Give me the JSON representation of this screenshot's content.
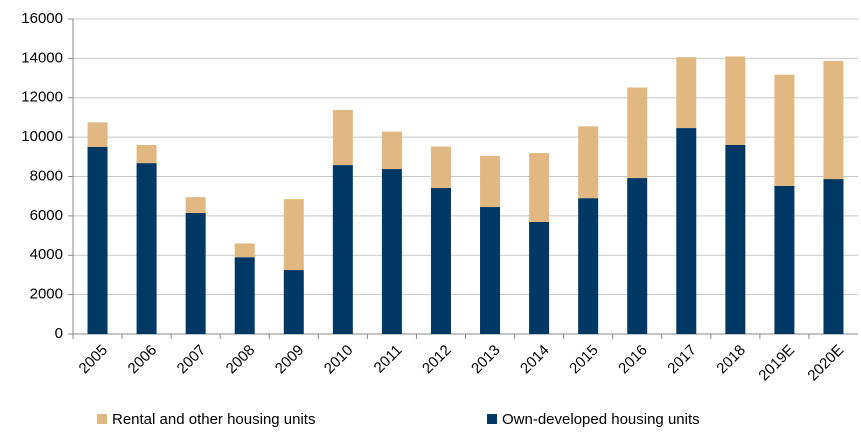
{
  "chart_data": {
    "type": "bar",
    "stacked": true,
    "categories": [
      "2005",
      "2006",
      "2007",
      "2008",
      "2009",
      "2010",
      "2011",
      "2012",
      "2013",
      "2014",
      "2015",
      "2016",
      "2017",
      "2018",
      "2019E",
      "2020E"
    ],
    "series": [
      {
        "name": "Rental and other housing units",
        "color": "#e1b882",
        "values": [
          1250,
          920,
          800,
          700,
          3600,
          2800,
          1900,
          2100,
          2600,
          3500,
          3650,
          4600,
          3600,
          4500,
          5650,
          6000
        ]
      },
      {
        "name": "Own-developed housing units",
        "color": "#003865",
        "values": [
          9500,
          8680,
          6150,
          3900,
          3250,
          8580,
          8380,
          7420,
          6450,
          5690,
          6900,
          7920,
          10460,
          9600,
          7520,
          7870
        ]
      }
    ],
    "ylim": [
      0,
      16000
    ],
    "yticks": [
      0,
      2000,
      4000,
      6000,
      8000,
      10000,
      12000,
      14000,
      16000
    ],
    "grid": true,
    "legend": "bottom"
  }
}
